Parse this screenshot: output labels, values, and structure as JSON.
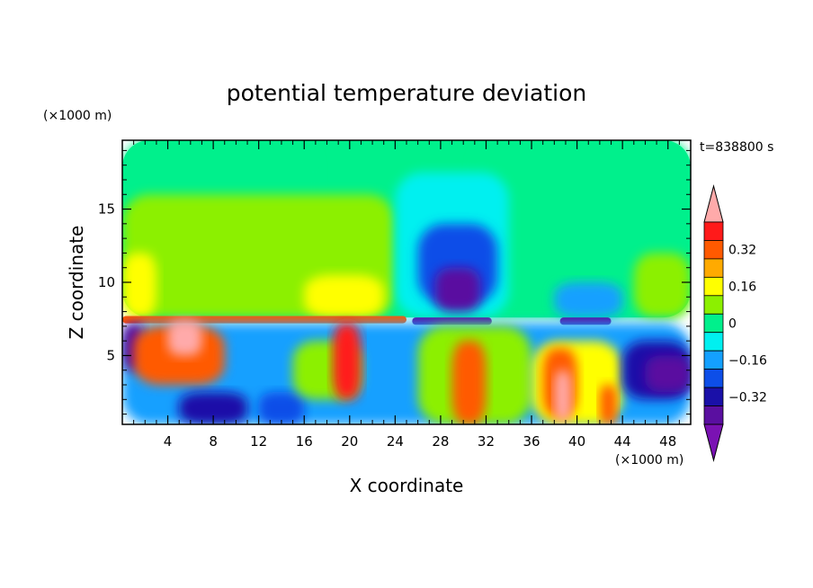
{
  "chart_data": {
    "type": "heatmap",
    "title": "potential temperature deviation",
    "xlabel": "X coordinate",
    "ylabel": "Z coordinate",
    "x_unit": "(×1000 m)",
    "y_unit": "(×1000 m)",
    "time_label": "t=838800 s",
    "xlim": [
      0,
      50
    ],
    "ylim": [
      0.3,
      19.7
    ],
    "x_ticks": [
      4,
      8,
      12,
      16,
      20,
      24,
      28,
      32,
      36,
      40,
      44,
      48
    ],
    "y_ticks": [
      5,
      10,
      15
    ],
    "colorbar": {
      "levels": [
        -0.48,
        -0.4,
        -0.32,
        -0.24,
        -0.16,
        -0.08,
        0,
        0.08,
        0.16,
        0.24,
        0.32,
        0.4,
        0.48
      ],
      "labels": [
        "0.32",
        "0.16",
        "0",
        "−0.16",
        "−0.32"
      ],
      "label_values": [
        0.32,
        0.16,
        0,
        -0.16,
        -0.32
      ],
      "colors": [
        "#7a12b3",
        "#5a0fa0",
        "#1a10a8",
        "#0d4ee8",
        "#14a0ff",
        "#00f0f0",
        "#00f08c",
        "#8cf000",
        "#ffff00",
        "#ffaa00",
        "#ff5a00",
        "#ff1a1a",
        "#ffaaaa"
      ],
      "extend": "both"
    },
    "regions": [
      {
        "x": [
          0,
          50
        ],
        "z": [
          7.6,
          19.7
        ],
        "value": 0.04
      },
      {
        "x": [
          0,
          17
        ],
        "z": [
          10.5,
          19.7
        ],
        "value": 0.04
      },
      {
        "x": [
          0,
          24
        ],
        "z": [
          7.6,
          16
        ],
        "value": 0.05
      },
      {
        "x": [
          31,
          50
        ],
        "z": [
          7.6,
          19.7
        ],
        "value": -0.02
      },
      {
        "x": [
          24,
          34
        ],
        "z": [
          7.6,
          17.5
        ],
        "value": -0.1
      },
      {
        "x": [
          26,
          33
        ],
        "z": [
          8.5,
          14
        ],
        "value": -0.2
      },
      {
        "x": [
          27.5,
          31.5
        ],
        "z": [
          8,
          11
        ],
        "value": -0.36
      },
      {
        "x": [
          0,
          3
        ],
        "z": [
          7.6,
          12
        ],
        "value": 0.16
      },
      {
        "x": [
          16,
          23
        ],
        "z": [
          7.6,
          10.5
        ],
        "value": 0.16
      },
      {
        "x": [
          45,
          50
        ],
        "z": [
          7.6,
          12
        ],
        "value": 0.1
      },
      {
        "x": [
          38,
          44
        ],
        "z": [
          7.6,
          10
        ],
        "value": -0.12
      },
      {
        "x": [
          25.5,
          32.5
        ],
        "z": [
          7.1,
          7.6
        ],
        "value": -0.4
      },
      {
        "x": [
          38.5,
          43
        ],
        "z": [
          7.1,
          7.6
        ],
        "value": -0.4
      },
      {
        "x": [
          0,
          25
        ],
        "z": [
          7.2,
          7.7
        ],
        "value": 0.36
      },
      {
        "x": [
          0,
          50
        ],
        "z": [
          0.3,
          7.2
        ],
        "value": -0.12
      },
      {
        "x": [
          0,
          2
        ],
        "z": [
          4,
          7.2
        ],
        "value": -0.4
      },
      {
        "x": [
          1,
          9
        ],
        "z": [
          3,
          7
        ],
        "value": 0.3
      },
      {
        "x": [
          4,
          7
        ],
        "z": [
          5,
          7.4
        ],
        "value": 0.45
      },
      {
        "x": [
          5,
          11
        ],
        "z": [
          0.3,
          2.5
        ],
        "value": -0.35
      },
      {
        "x": [
          12,
          16
        ],
        "z": [
          0.3,
          2.5
        ],
        "value": -0.26
      },
      {
        "x": [
          15,
          21
        ],
        "z": [
          2,
          6
        ],
        "value": 0.12
      },
      {
        "x": [
          18.5,
          21
        ],
        "z": [
          2,
          7.2
        ],
        "value": 0.38
      },
      {
        "x": [
          26,
          36
        ],
        "z": [
          0.3,
          7
        ],
        "value": 0.1
      },
      {
        "x": [
          29,
          32
        ],
        "z": [
          0.3,
          6
        ],
        "value": 0.32
      },
      {
        "x": [
          36,
          44
        ],
        "z": [
          0.3,
          6
        ],
        "value": 0.14
      },
      {
        "x": [
          37,
          40
        ],
        "z": [
          0.8,
          5.5
        ],
        "value": 0.32
      },
      {
        "x": [
          38,
          39.5
        ],
        "z": [
          0.5,
          4
        ],
        "value": 0.45
      },
      {
        "x": [
          42,
          43.5
        ],
        "z": [
          0.3,
          3
        ],
        "value": 0.32
      },
      {
        "x": [
          44,
          50
        ],
        "z": [
          2,
          6
        ],
        "value": -0.28
      },
      {
        "x": [
          46,
          50
        ],
        "z": [
          2.5,
          5
        ],
        "value": -0.36
      }
    ]
  }
}
